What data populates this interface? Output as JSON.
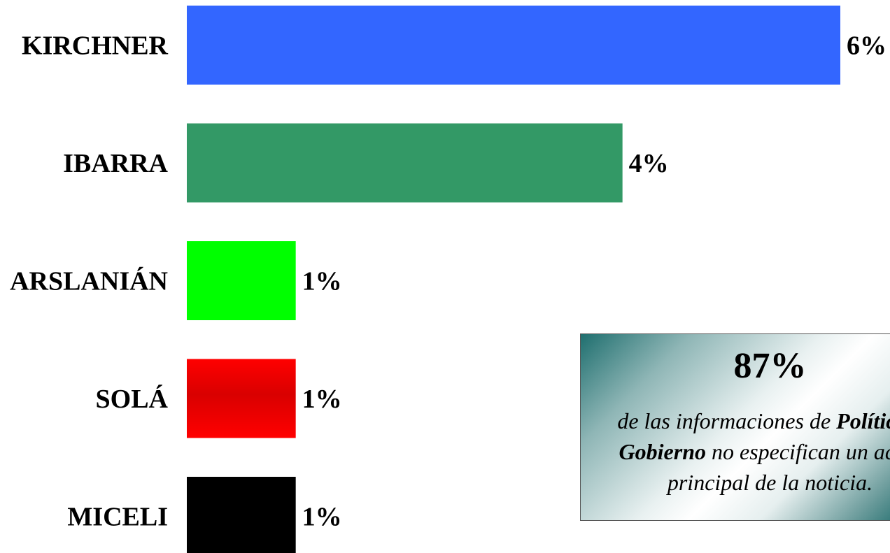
{
  "chart_data": {
    "type": "bar",
    "orientation": "horizontal",
    "categories": [
      "KIRCHNER",
      "IBARRA",
      "ARSLANIÁN",
      "SOLÁ",
      "MICELI"
    ],
    "values": [
      6,
      4,
      1,
      1,
      1
    ],
    "value_labels": [
      "6%",
      "4%",
      "1%",
      "1%",
      "1%"
    ],
    "unit": "%",
    "colors": [
      "#3366ff",
      "#339966",
      "#00ff00",
      "#ff0000",
      "#000000"
    ],
    "xlim": [
      0,
      6
    ],
    "grid": false,
    "legend": "none"
  },
  "callout": {
    "big_value": "87%",
    "line1_pre": "de las informaciones de ",
    "line1_bold": "Política y",
    "line2_bold": "Gobierno",
    "line2_post": " no especifican un actor",
    "line3": "principal de la noticia."
  }
}
